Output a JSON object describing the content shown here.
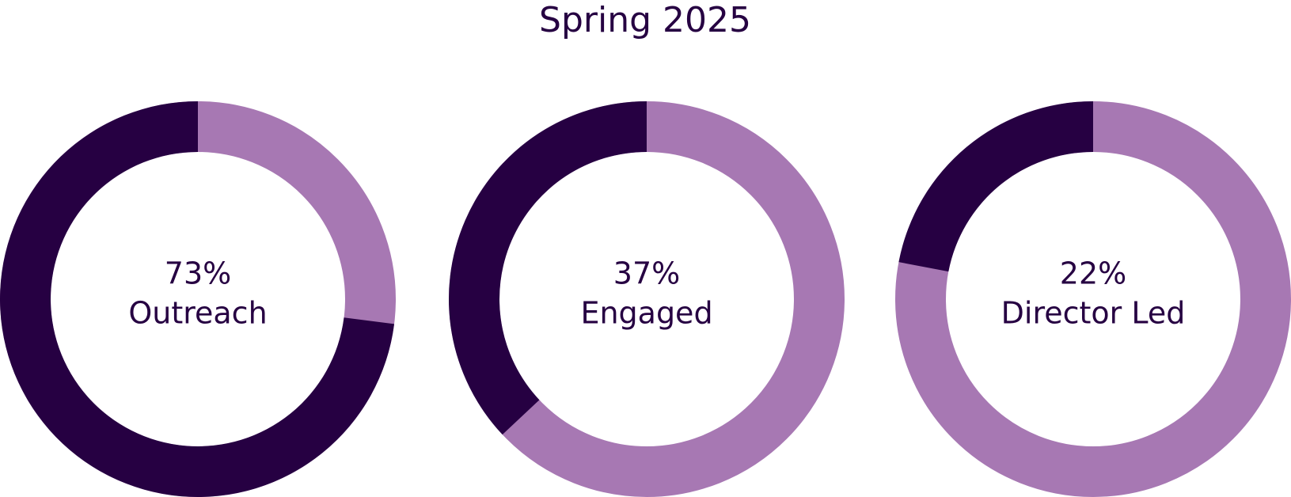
{
  "chart_data": {
    "type": "donut",
    "title": "Spring 2025",
    "categories": [
      "Outreach",
      "Engaged",
      "Director Led"
    ],
    "values": [
      73,
      37,
      22
    ],
    "value_labels": [
      "73%",
      "37%",
      "22%"
    ],
    "color": "#260042",
    "track_color": "#a778b3"
  }
}
